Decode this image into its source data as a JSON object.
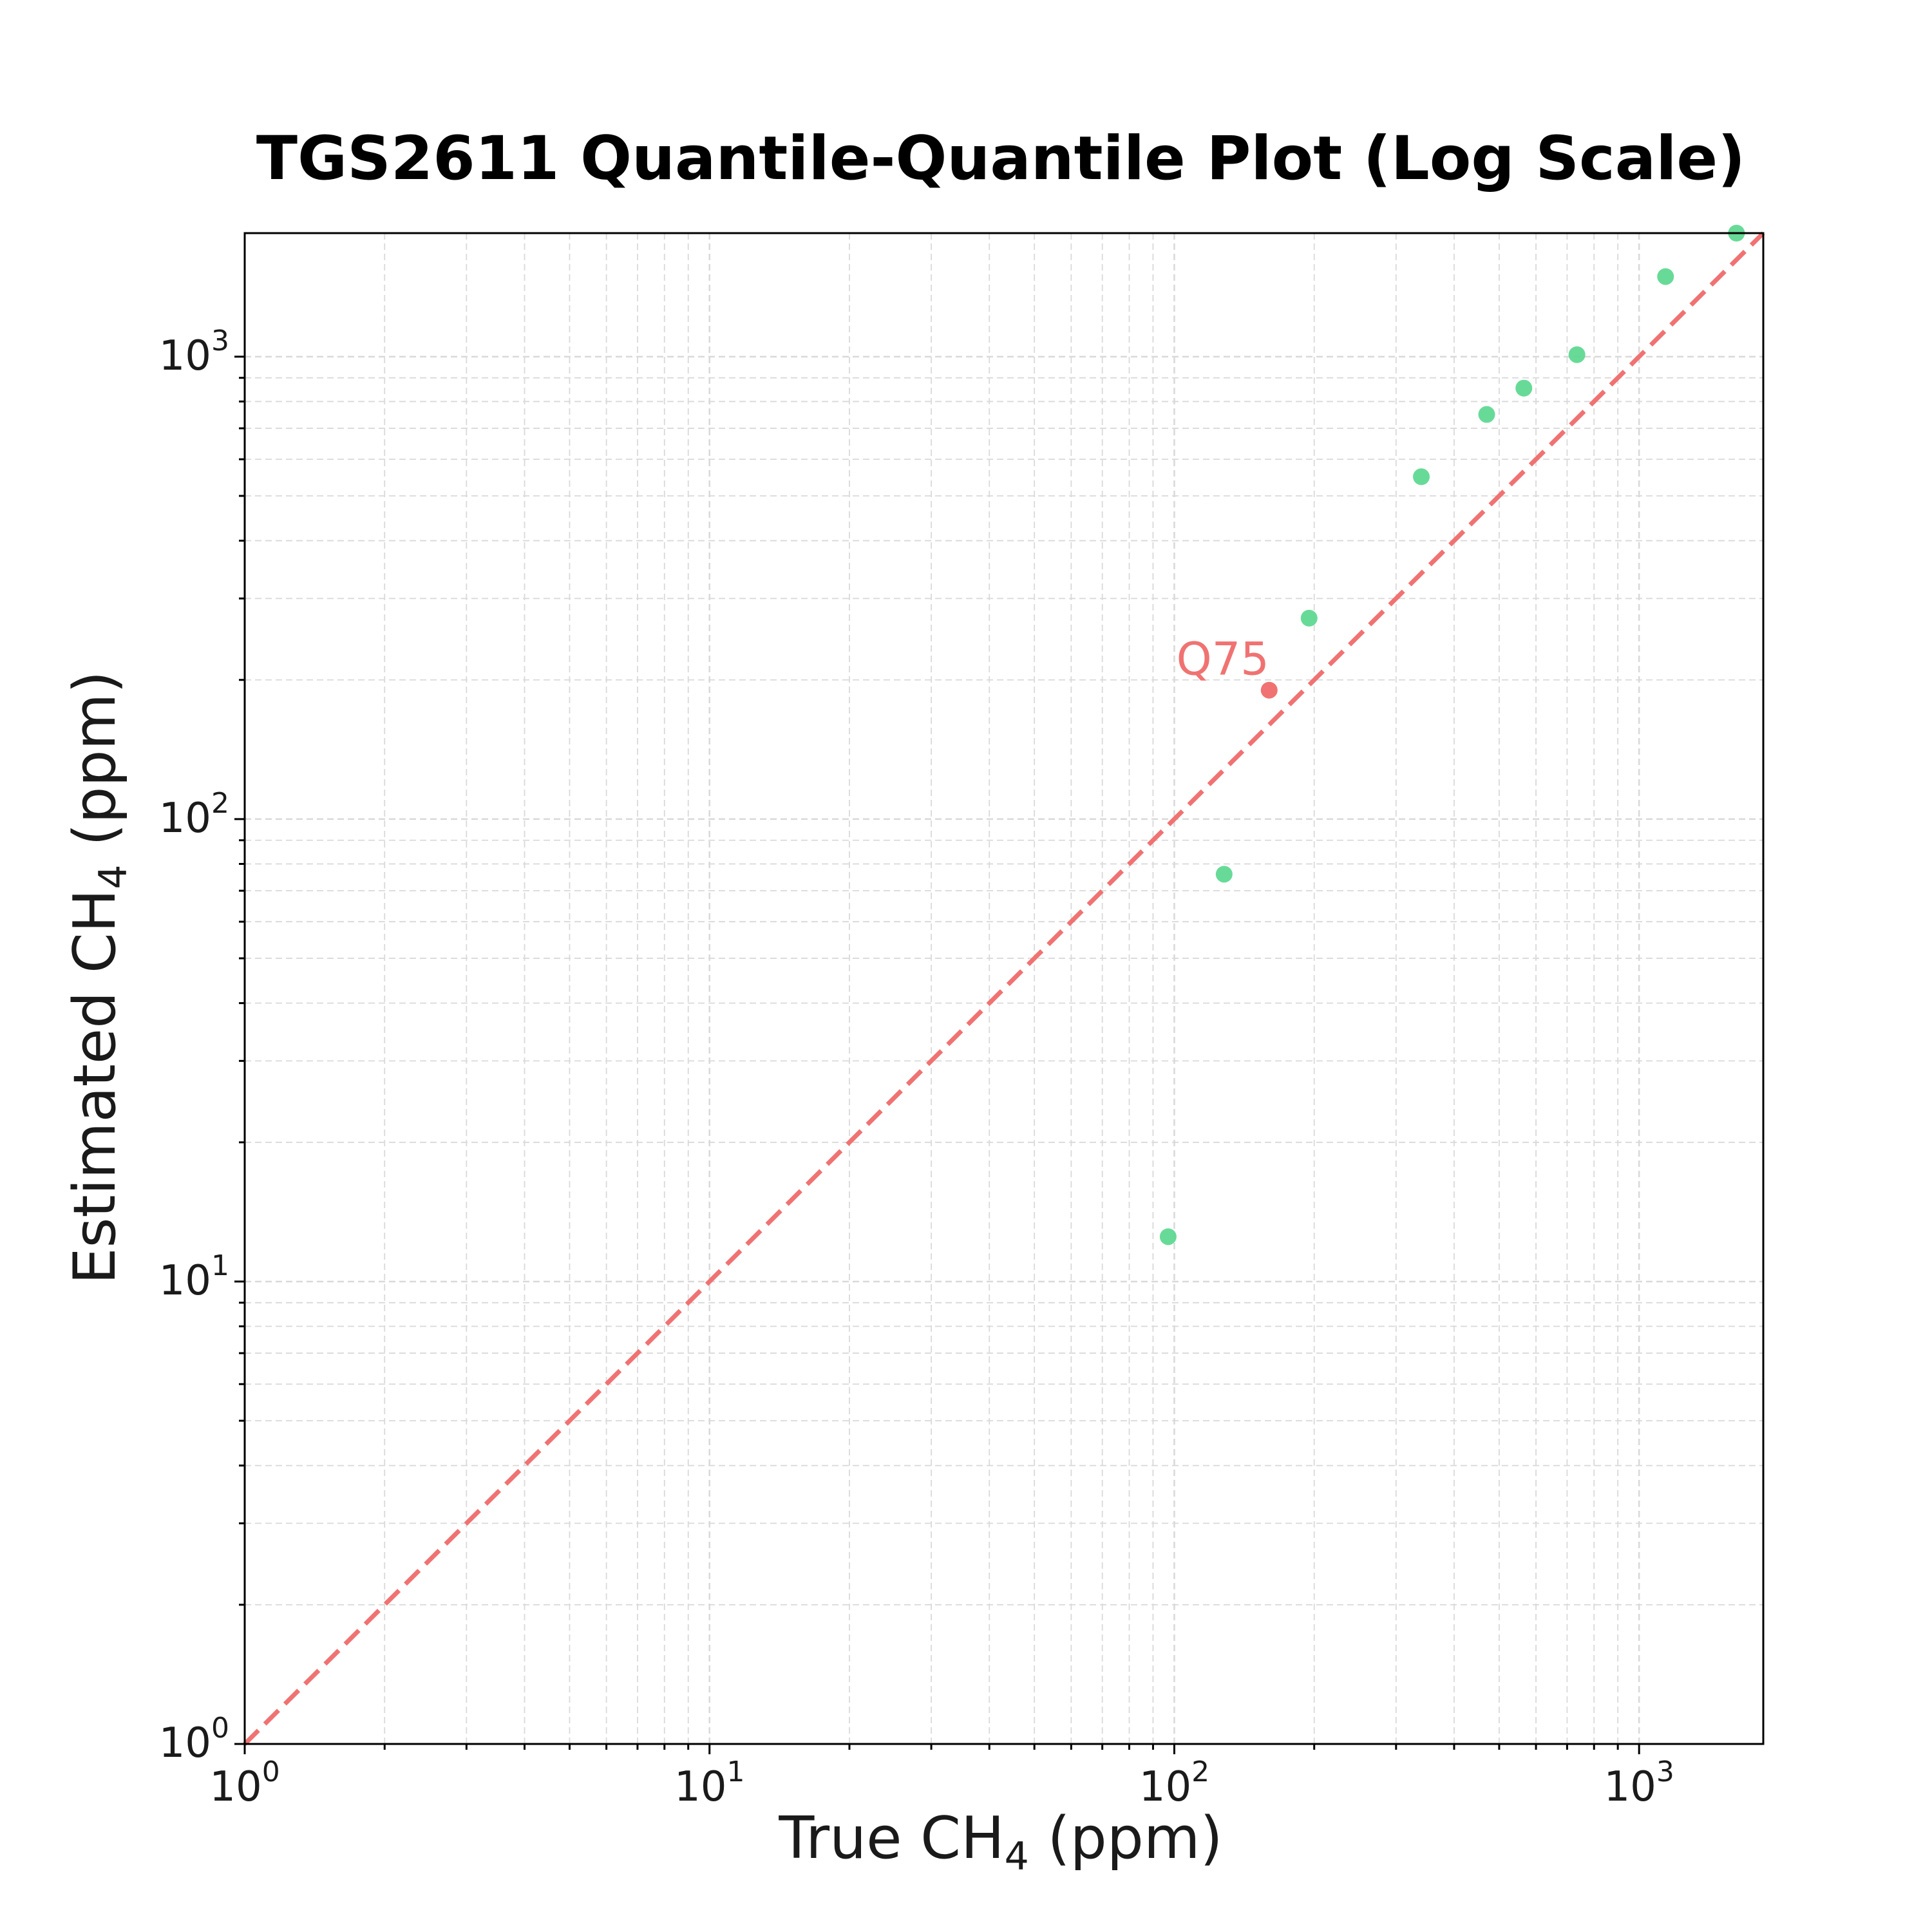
{
  "chart_data": {
    "type": "scatter",
    "title": "TGS2611 Quantile-Quantile Plot (Log Scale)",
    "xlabel": {
      "main": "True CH",
      "sub": "4",
      "tail": " (ppm)"
    },
    "ylabel": {
      "main": "Estimated CH",
      "sub": "4",
      "tail": " (ppm)"
    },
    "xscale": "log",
    "yscale": "log",
    "xlim": [
      1,
      1850
    ],
    "ylim": [
      1,
      1850
    ],
    "grid": true,
    "x_ticks": [
      {
        "value": 1,
        "base": "10",
        "exp": "0"
      },
      {
        "value": 10,
        "base": "10",
        "exp": "1"
      },
      {
        "value": 100,
        "base": "10",
        "exp": "2"
      },
      {
        "value": 1000,
        "base": "10",
        "exp": "3"
      }
    ],
    "y_ticks": [
      {
        "value": 1,
        "base": "10",
        "exp": "0"
      },
      {
        "value": 10,
        "base": "10",
        "exp": "1"
      },
      {
        "value": 100,
        "base": "10",
        "exp": "2"
      },
      {
        "value": 1000,
        "base": "10",
        "exp": "3"
      }
    ],
    "reference_line": {
      "from": [
        1,
        1
      ],
      "to": [
        1850,
        1850
      ],
      "style": "dashed",
      "color": "#f07272"
    },
    "points": [
      {
        "x": 97,
        "y": 12.5
      },
      {
        "x": 128,
        "y": 76
      },
      {
        "x": 160,
        "y": 190,
        "label": "Q75",
        "highlight": true
      },
      {
        "x": 195,
        "y": 272
      },
      {
        "x": 340,
        "y": 550
      },
      {
        "x": 470,
        "y": 750
      },
      {
        "x": 565,
        "y": 855
      },
      {
        "x": 735,
        "y": 1010
      },
      {
        "x": 1140,
        "y": 1490
      },
      {
        "x": 1620,
        "y": 1850
      }
    ],
    "colors": {
      "points": "#58d68d",
      "highlight": "#f07272",
      "line": "#f07272",
      "grid": "#d9d9d9",
      "axes": "#000000"
    }
  }
}
